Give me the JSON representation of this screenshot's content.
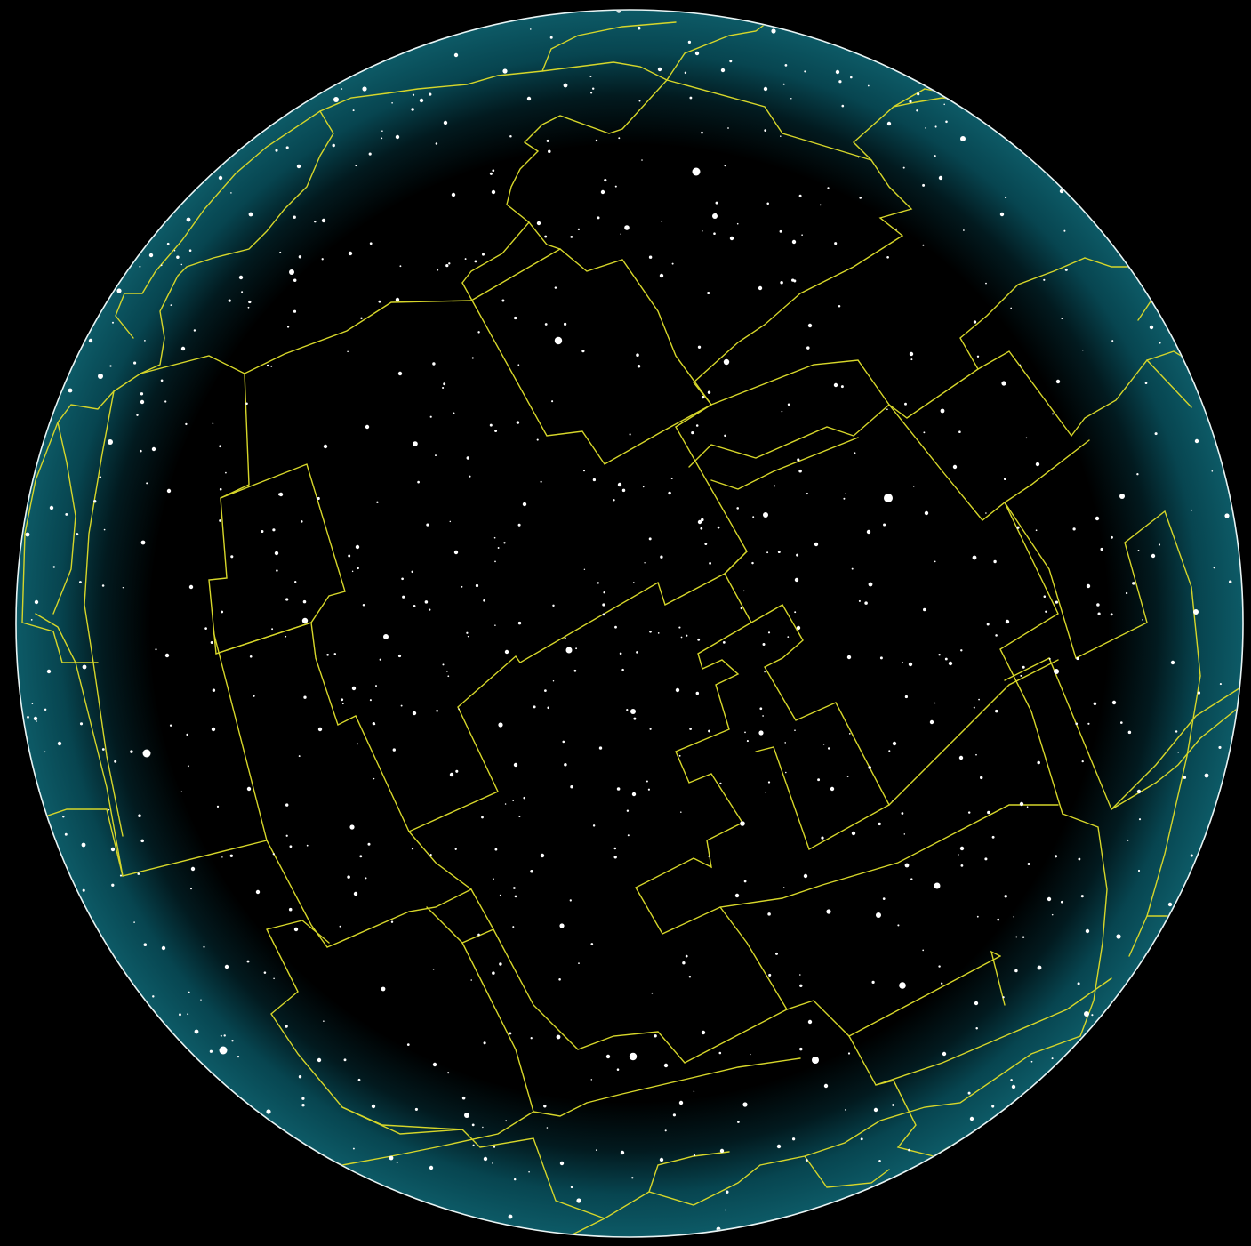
{
  "view": {
    "background_color": "#000000",
    "horizon_glow_color": "#0d5a66",
    "rim_color": "#e8f4f4",
    "boundary_color": "#d6d62a",
    "star_color": "#ffffff"
  }
}
